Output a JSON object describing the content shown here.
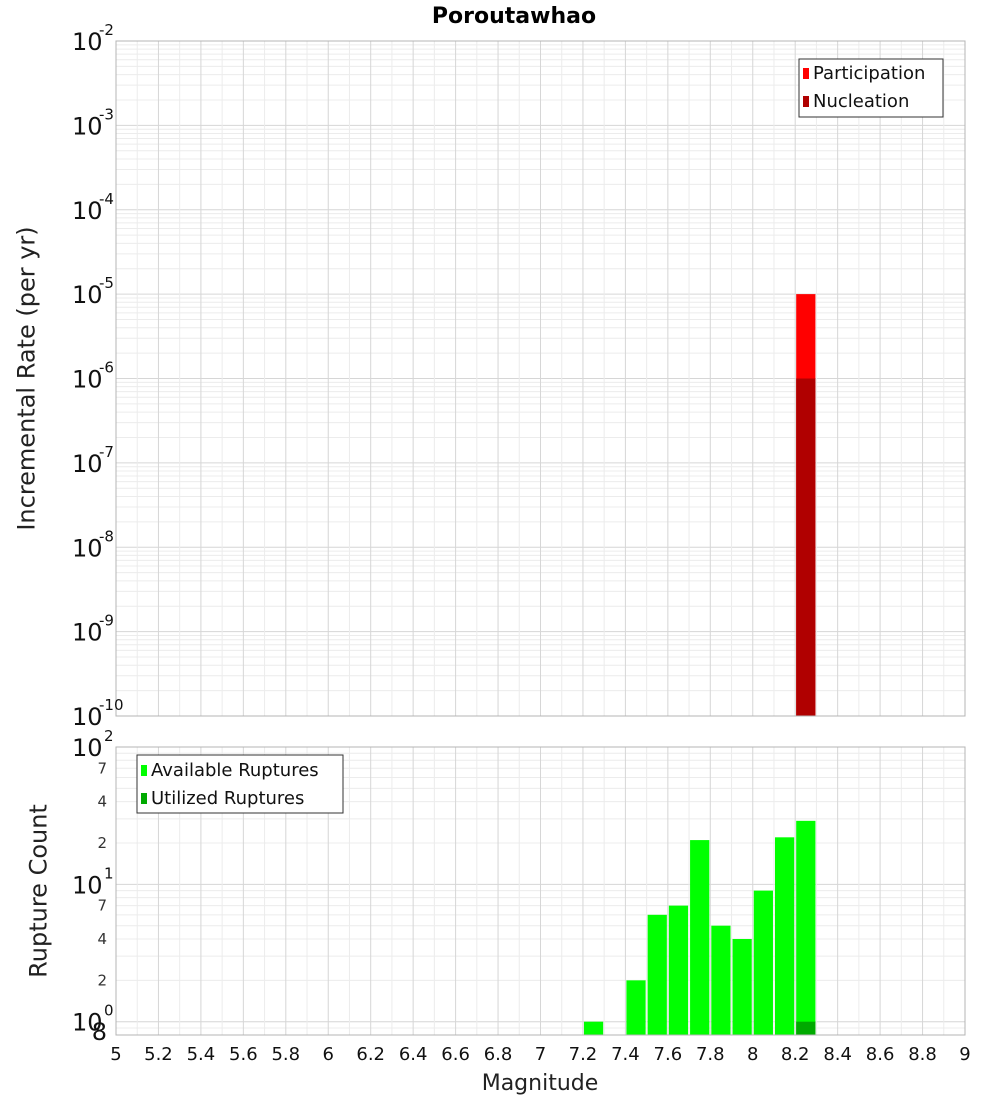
{
  "title": "Poroutawhao",
  "colors": {
    "participation": "#ff0000",
    "nucleation": "#b00000",
    "available": "#00ff00",
    "utilized": "#00aa00"
  },
  "chart_data": [
    {
      "type": "bar",
      "name": "top",
      "ylabel": "Incremental Rate (per yr)",
      "yscale": "log",
      "ylim": [
        1e-10,
        0.01
      ],
      "xlim": [
        5,
        9
      ],
      "y_exponents": [
        "-10",
        "-9",
        "-8",
        "-7",
        "-6",
        "-5",
        "-4",
        "-3",
        "-2"
      ],
      "y_base_label": "10",
      "legend": {
        "position": "top-right",
        "entries": [
          "Participation",
          "Nucleation"
        ]
      },
      "series": [
        {
          "name": "Participation",
          "x": [
            8.25
          ],
          "values": [
            1e-05
          ]
        },
        {
          "name": "Nucleation",
          "x": [
            8.25
          ],
          "values": [
            1e-06
          ]
        }
      ]
    },
    {
      "type": "bar",
      "name": "bottom",
      "ylabel": "Rupture Count",
      "xlabel": "Magnitude",
      "yscale": "log",
      "ylim": [
        0.8,
        100
      ],
      "xlim": [
        5,
        9
      ],
      "y_base_label": "10",
      "y_major_exponents": [
        "0",
        "1",
        "2"
      ],
      "y_minor_labels": [
        "8",
        "2",
        "4",
        "7",
        "2",
        "4",
        "7"
      ],
      "x_ticks": [
        "5",
        "5.2",
        "5.4",
        "5.6",
        "5.8",
        "6",
        "6.2",
        "6.4",
        "6.6",
        "6.8",
        "7",
        "7.2",
        "7.4",
        "7.6",
        "7.8",
        "8",
        "8.2",
        "8.4",
        "8.6",
        "8.8",
        "9"
      ],
      "legend": {
        "position": "top-left",
        "entries": [
          "Available Ruptures",
          "Utilized Ruptures"
        ]
      },
      "series": [
        {
          "name": "Available Ruptures",
          "x": [
            7.25,
            7.45,
            7.55,
            7.65,
            7.75,
            7.85,
            7.95,
            8.05,
            8.15,
            8.25
          ],
          "values": [
            1,
            2,
            6,
            7,
            21,
            5,
            4,
            9,
            22,
            29
          ]
        },
        {
          "name": "Utilized Ruptures",
          "x": [
            8.25
          ],
          "values": [
            1
          ]
        }
      ]
    }
  ]
}
